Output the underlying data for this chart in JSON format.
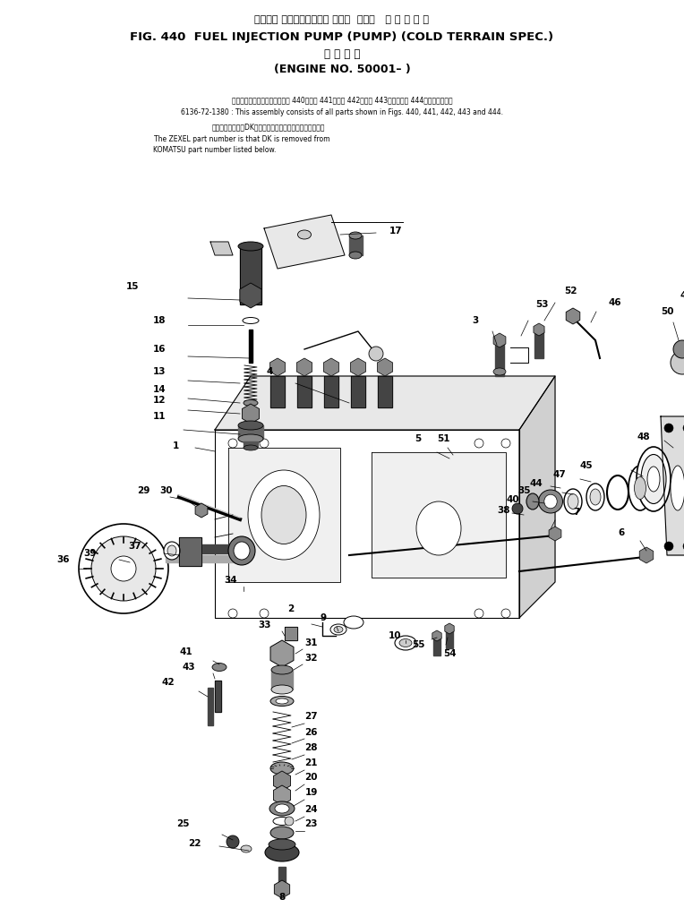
{
  "title_jp": "フェエル インジェクション ポンプ  ポンプ   寒 冷 地 仕 機",
  "title_en": "FIG. 440  FUEL INJECTION PUMP (PUMP) (COLD TERRAIN SPEC.)",
  "subtitle_jp": "適 用 号 機",
  "subtitle_en": "(ENGINE NO. 50001– )",
  "note1_jp": "このアセンブリの構成部品はㆴ 440図、ㆴ 441図、ㆴ 442図、ㆴ 443図およびㆴ 444図を含みます。",
  "note1_en": "6136-72-1380 : This assembly consists of all parts shown in Figs. 440, 441, 442, 443 and 444.",
  "note2_jp": "品番のメーカ記号DKを除いたものがゼクセルの品番です。",
  "note2_en1": "The ZEXEL part number is that DK is removed from",
  "note2_en2": "KOMATSU part number listed below.",
  "bg_color": "#ffffff",
  "diagram_color": "#000000",
  "fig_w": 7.64,
  "fig_h": 10.14,
  "dpi": 100
}
